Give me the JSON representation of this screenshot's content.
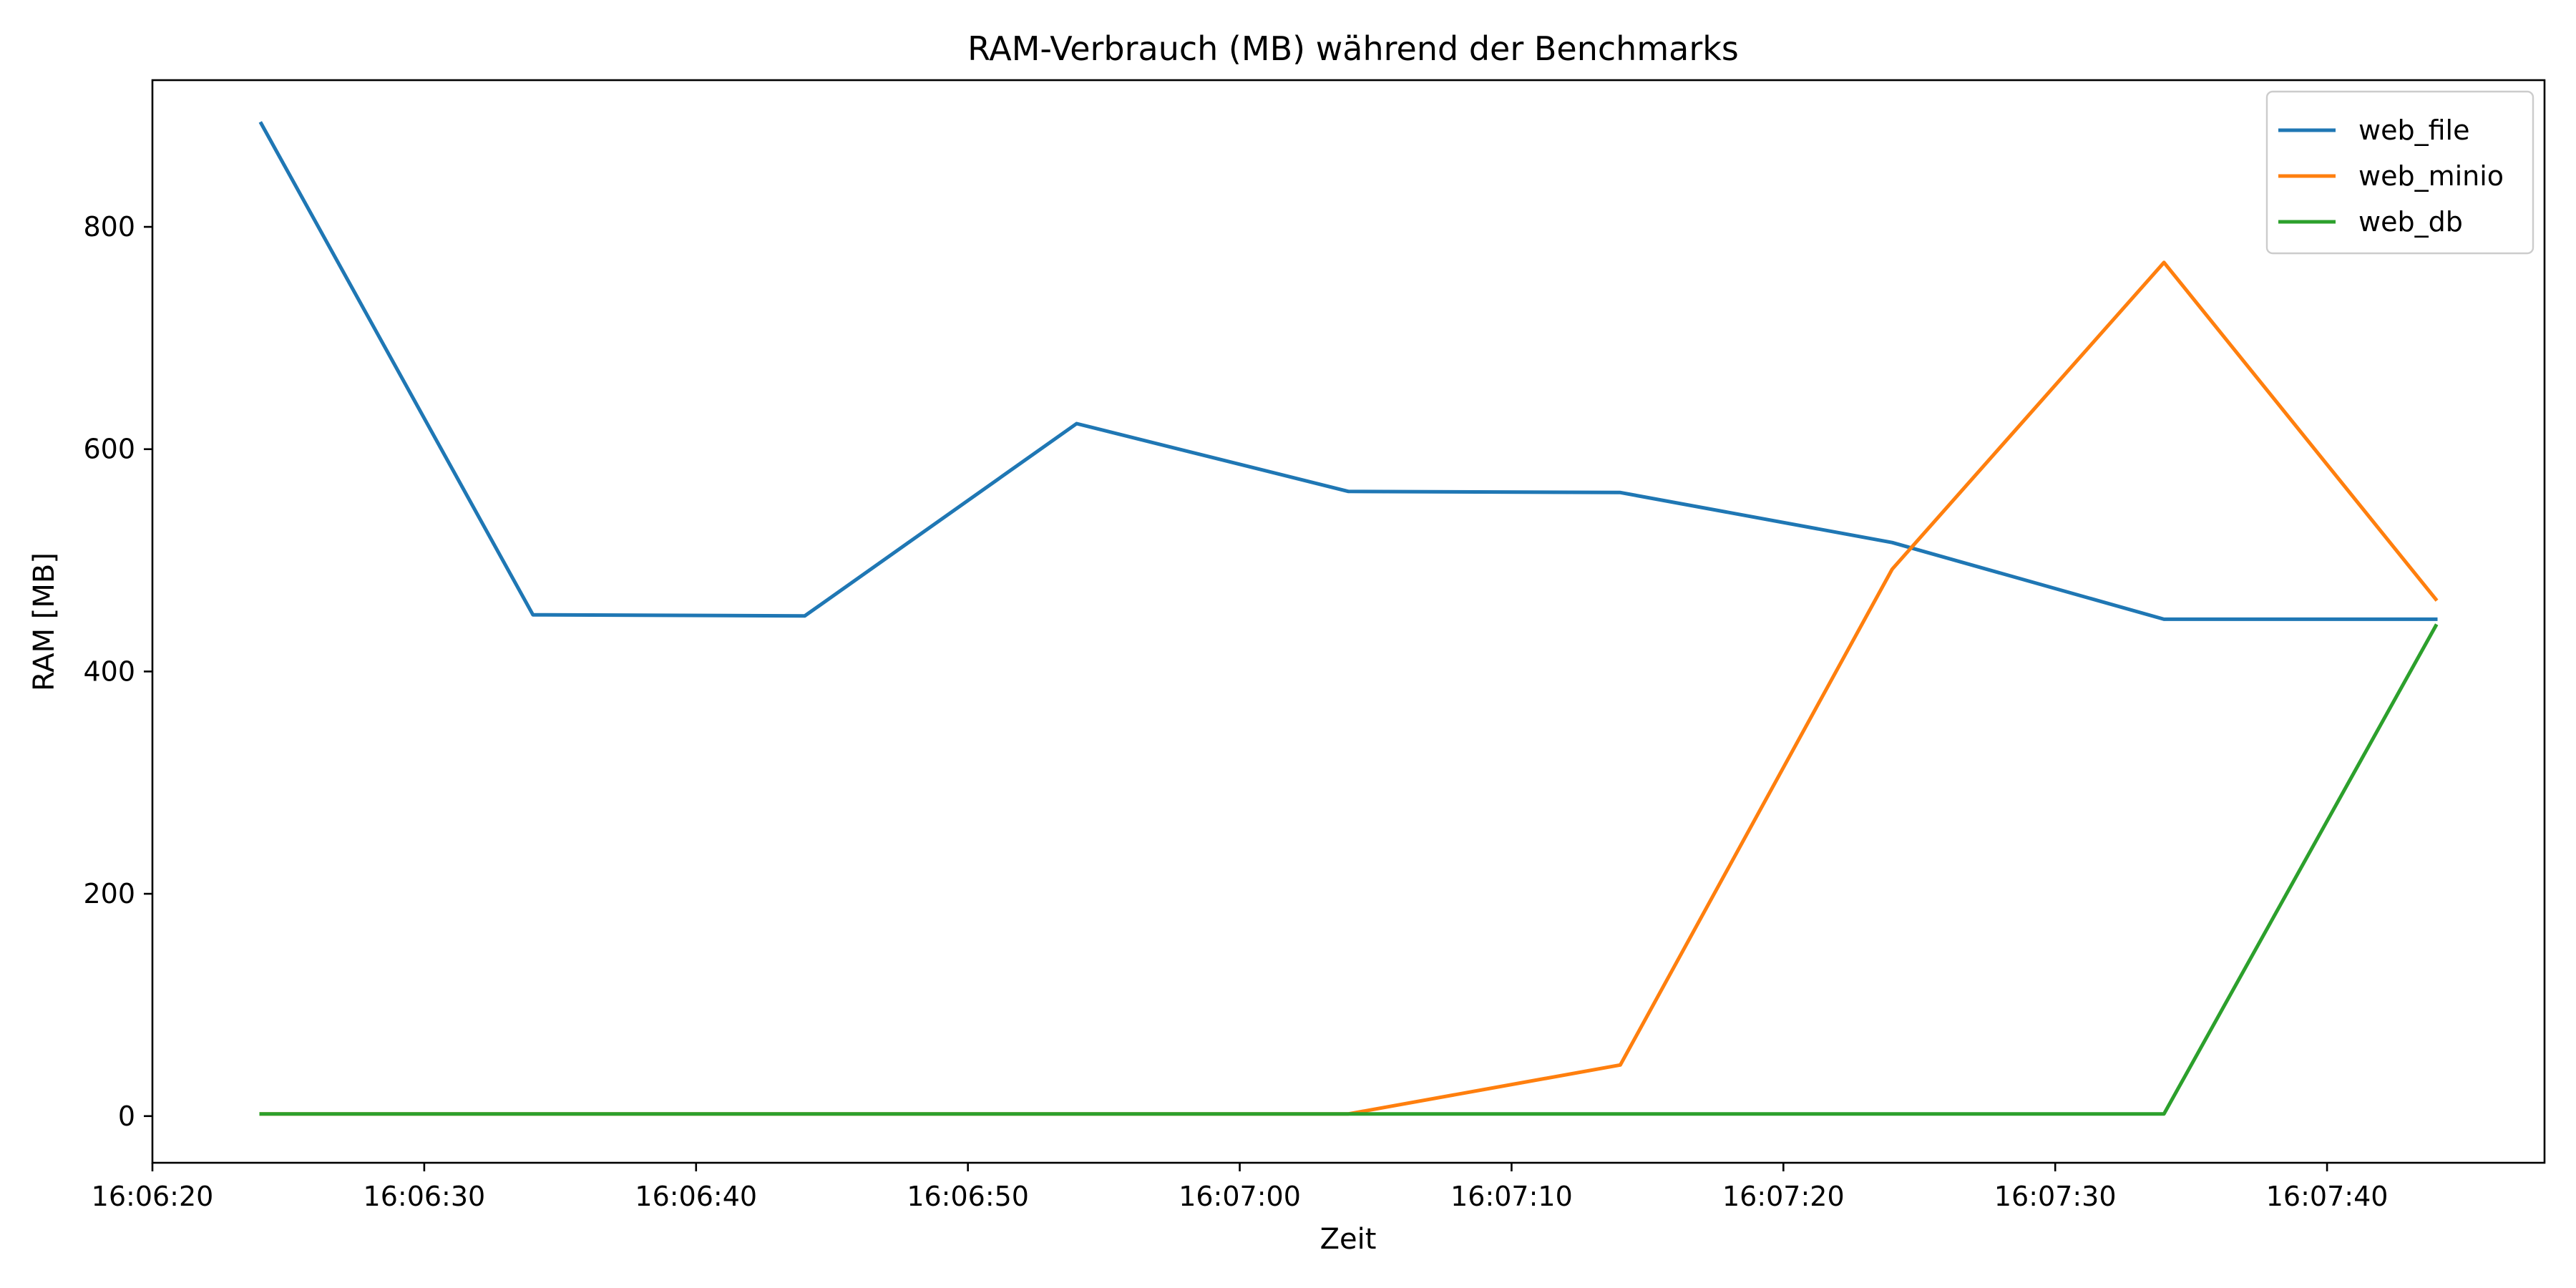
{
  "chart_data": {
    "type": "line",
    "title": "RAM-Verbrauch (MB) während der Benchmarks",
    "xlabel": "Zeit",
    "ylabel": "RAM [MB]",
    "x": [
      "16:06:24",
      "16:06:34",
      "16:06:44",
      "16:06:54",
      "16:07:04",
      "16:07:14",
      "16:07:24",
      "16:07:34",
      "16:07:44"
    ],
    "xlim": [
      "16:06:20",
      "16:07:48"
    ],
    "ylim": [
      -42,
      932
    ],
    "xticks": [
      "16:06:20",
      "16:06:30",
      "16:06:40",
      "16:06:50",
      "16:07:00",
      "16:07:10",
      "16:07:20",
      "16:07:30",
      "16:07:40"
    ],
    "yticks": [
      0,
      200,
      400,
      600,
      800
    ],
    "grid": false,
    "legend_position": "top-right",
    "series": [
      {
        "name": "web_file",
        "color": "#1f77b4",
        "values": [
          893,
          451,
          450,
          623,
          562,
          561,
          516,
          447,
          447
        ]
      },
      {
        "name": "web_minio",
        "color": "#ff7f0e",
        "values": [
          2,
          2,
          2,
          2,
          2,
          46,
          492,
          768,
          465
        ]
      },
      {
        "name": "web_db",
        "color": "#2ca02c",
        "values": [
          2,
          2,
          2,
          2,
          2,
          2,
          2,
          2,
          441
        ]
      }
    ]
  }
}
